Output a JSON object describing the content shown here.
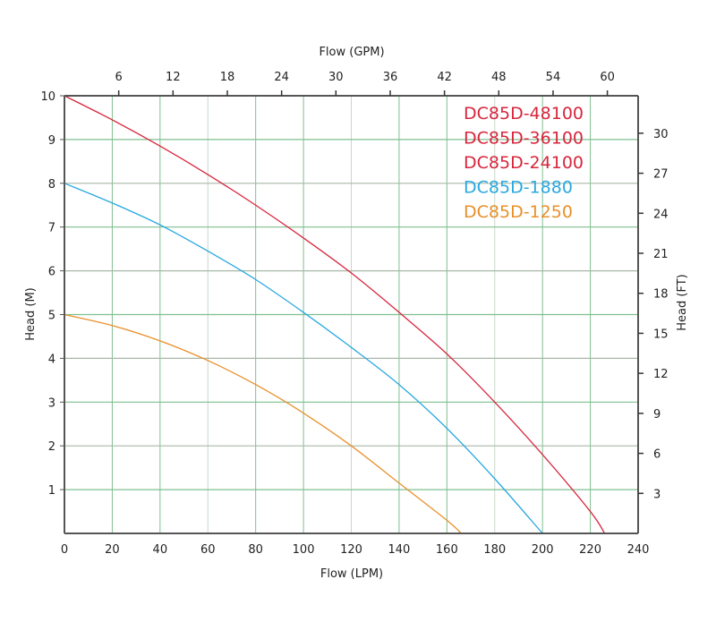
{
  "chart_data": {
    "type": "line",
    "xlabel": "Flow (LPM)",
    "x2label": "Flow (GPM)",
    "ylabel": "Head (M)",
    "y2label": "Head (FT)",
    "xlim": [
      0,
      240
    ],
    "ylim": [
      0,
      10
    ],
    "xticks": [
      0,
      20,
      40,
      60,
      80,
      100,
      120,
      140,
      160,
      180,
      200,
      220,
      240
    ],
    "yticks": [
      1,
      2,
      3,
      4,
      5,
      6,
      7,
      8,
      9,
      10
    ],
    "x2ticks": [
      6,
      12,
      18,
      24,
      30,
      36,
      42,
      48,
      54,
      60
    ],
    "y2ticks": [
      3,
      6,
      9,
      12,
      15,
      18,
      21,
      24,
      27,
      30
    ],
    "grid": true,
    "legend_position": "top-right",
    "legend": [
      {
        "label": "DC85D-48100",
        "color": "#d7263d"
      },
      {
        "label": "DC85D-36100",
        "color": "#d7263d"
      },
      {
        "label": "DC85D-24100",
        "color": "#d7263d"
      },
      {
        "label": "DC85D-1880",
        "color": "#29a8e0"
      },
      {
        "label": "DC85D-1250",
        "color": "#e8902a"
      }
    ],
    "series": [
      {
        "color": "#d7263d",
        "x": [
          0,
          20,
          40,
          60,
          80,
          100,
          120,
          140,
          160,
          180,
          200,
          220,
          226
        ],
        "y": [
          10,
          9.45,
          8.85,
          8.2,
          7.5,
          6.75,
          5.95,
          5.05,
          4.1,
          3.0,
          1.8,
          0.5,
          0
        ]
      },
      {
        "color": "#29a8e0",
        "x": [
          0,
          20,
          40,
          60,
          80,
          100,
          120,
          140,
          160,
          180,
          200
        ],
        "y": [
          8,
          7.55,
          7.05,
          6.45,
          5.8,
          5.05,
          4.25,
          3.4,
          2.4,
          1.25,
          0
        ]
      },
      {
        "color": "#e8902a",
        "x": [
          0,
          20,
          40,
          60,
          80,
          100,
          120,
          140,
          160,
          166
        ],
        "y": [
          5,
          4.75,
          4.4,
          3.95,
          3.4,
          2.75,
          2.0,
          1.15,
          0.3,
          0
        ]
      }
    ]
  }
}
